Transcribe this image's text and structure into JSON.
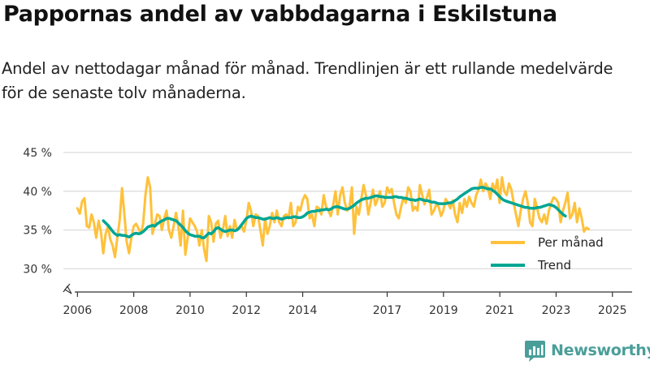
{
  "title": "Pappornas andel av vabbdagarna i Eskilstuna",
  "subtitle": "Andel av nettodagar månad för månad. Trendlinjen är ett rullande medelvärde för de senaste tolv månaderna.",
  "brand": "Newsworthy",
  "colors": {
    "monthly": "#ffc13b",
    "trend": "#00a693",
    "grid": "#d9d9d9",
    "axis": "#333333",
    "brand": "#4a9e9a"
  },
  "chart_data": {
    "type": "line",
    "title": "Pappornas andel av vabbdagarna i Eskilstuna",
    "xlabel": "",
    "ylabel": "",
    "y_range": [
      27,
      45
    ],
    "x_range": [
      2005.5,
      2025.7
    ],
    "y_ticks": [
      30,
      35,
      40,
      45
    ],
    "y_tick_labels": [
      "30 %",
      "35 %",
      "40 %",
      "45 %"
    ],
    "axis_break": true,
    "x_ticks": [
      2006,
      2008,
      2010,
      2012,
      2014,
      2017,
      2019,
      2021,
      2023,
      2025
    ],
    "x_tick_labels": [
      "2006",
      "2008",
      "2010",
      "2012",
      "2014",
      "2017",
      "2019",
      "2021",
      "2023",
      "2025"
    ],
    "legend": {
      "position": "bottom-right",
      "entries": [
        "Per månad",
        "Trend"
      ]
    },
    "series": [
      {
        "name": "Per månad",
        "x_start": 2006.0,
        "x_step": 0.0833,
        "values": [
          37.8,
          37.1,
          38.7,
          39.1,
          35.5,
          35.3,
          37.0,
          36.0,
          34.0,
          36.2,
          34.8,
          32.0,
          34.5,
          35.5,
          33.8,
          33.0,
          31.5,
          34.0,
          36.3,
          40.4,
          37.0,
          33.5,
          32.0,
          34.0,
          35.5,
          35.8,
          35.2,
          34.5,
          35.8,
          39.5,
          41.8,
          40.5,
          34.5,
          35.8,
          37.0,
          36.8,
          35.0,
          36.5,
          37.5,
          35.0,
          34.0,
          35.5,
          37.2,
          35.5,
          33.0,
          37.5,
          31.8,
          34.0,
          36.5,
          36.0,
          35.5,
          34.8,
          33.0,
          35.0,
          32.5,
          31.0,
          36.8,
          36.0,
          33.5,
          35.8,
          36.2,
          34.0,
          35.0,
          36.8,
          34.2,
          35.5,
          34.0,
          36.3,
          35.0,
          35.2,
          35.5,
          34.8,
          36.2,
          38.5,
          37.5,
          35.5,
          37.0,
          36.8,
          35.0,
          33.0,
          36.5,
          34.5,
          35.5,
          37.2,
          36.0,
          37.5,
          36.0,
          35.5,
          36.8,
          37.0,
          36.5,
          38.5,
          35.5,
          36.0,
          38.0,
          37.5,
          38.8,
          39.5,
          39.0,
          36.5,
          37.0,
          35.5,
          38.0,
          37.8,
          37.0,
          39.5,
          38.0,
          37.5,
          36.8,
          38.2,
          40.0,
          37.0,
          39.5,
          40.5,
          38.5,
          37.5,
          38.0,
          40.5,
          34.5,
          38.0,
          37.0,
          39.0,
          40.8,
          39.5,
          37.0,
          38.5,
          40.2,
          38.2,
          39.0,
          40.0,
          38.0,
          38.5,
          40.5,
          39.8,
          40.3,
          38.5,
          37.0,
          36.5,
          38.0,
          39.2,
          38.5,
          40.5,
          40.0,
          37.5,
          38.0,
          37.5,
          40.8,
          39.5,
          38.3,
          39.2,
          40.2,
          37.0,
          37.5,
          38.3,
          38.0,
          36.8,
          37.5,
          39.0,
          38.5,
          37.8,
          38.8,
          37.0,
          36.0,
          38.5,
          37.2,
          39.0,
          38.0,
          39.3,
          38.5,
          38.0,
          39.5,
          40.2,
          41.5,
          40.0,
          41.0,
          40.5,
          39.0,
          41.0,
          40.0,
          41.5,
          38.5,
          41.8,
          40.0,
          39.5,
          41.0,
          40.2,
          38.5,
          37.0,
          35.5,
          37.5,
          39.0,
          40.0,
          38.5,
          36.0,
          35.5,
          39.0,
          37.8,
          36.5,
          36.0,
          37.0,
          35.8,
          37.5,
          38.5,
          39.2,
          39.0,
          38.5,
          36.0,
          37.5,
          38.5,
          39.8,
          36.5,
          37.0,
          38.5,
          36.0,
          37.8,
          36.5,
          34.8,
          35.3,
          35.1
        ]
      },
      {
        "name": "Trend",
        "x_start": 2006.92,
        "x_step": 0.0833,
        "values": [
          36.2,
          35.9,
          35.6,
          35.2,
          34.8,
          34.5,
          34.3,
          34.4,
          34.3,
          34.3,
          34.2,
          34.1,
          34.3,
          34.5,
          34.6,
          34.5,
          34.6,
          34.8,
          35.1,
          35.4,
          35.5,
          35.6,
          35.5,
          35.8,
          36.0,
          36.2,
          36.3,
          36.5,
          36.5,
          36.4,
          36.3,
          36.2,
          35.9,
          35.6,
          35.3,
          34.9,
          34.6,
          34.4,
          34.3,
          34.2,
          34.2,
          34.2,
          34.0,
          34.0,
          34.3,
          34.6,
          34.5,
          34.8,
          35.2,
          35.3,
          35.1,
          34.9,
          34.8,
          34.9,
          35.0,
          35.0,
          34.9,
          35.0,
          35.3,
          35.7,
          36.1,
          36.5,
          36.7,
          36.8,
          36.7,
          36.6,
          36.6,
          36.5,
          36.4,
          36.4,
          36.5,
          36.6,
          36.5,
          36.5,
          36.6,
          36.5,
          36.4,
          36.5,
          36.6,
          36.6,
          36.6,
          36.7,
          36.7,
          36.6,
          36.6,
          36.7,
          36.9,
          37.2,
          37.3,
          37.4,
          37.4,
          37.5,
          37.5,
          37.6,
          37.6,
          37.7,
          37.6,
          37.7,
          37.9,
          38.0,
          38.0,
          37.9,
          37.8,
          37.7,
          37.7,
          37.8,
          38.0,
          38.2,
          38.5,
          38.7,
          38.9,
          39.0,
          39.1,
          39.1,
          39.2,
          39.3,
          39.4,
          39.4,
          39.3,
          39.3,
          39.2,
          39.2,
          39.2,
          39.2,
          39.3,
          39.3,
          39.2,
          39.2,
          39.1,
          39.1,
          39.0,
          38.9,
          38.9,
          38.8,
          38.9,
          39.0,
          38.9,
          38.8,
          38.8,
          38.7,
          38.6,
          38.6,
          38.5,
          38.4,
          38.4,
          38.4,
          38.4,
          38.5,
          38.5,
          38.6,
          38.8,
          39.0,
          39.3,
          39.5,
          39.7,
          39.9,
          40.1,
          40.3,
          40.4,
          40.4,
          40.4,
          40.5,
          40.5,
          40.4,
          40.3,
          40.3,
          40.1,
          39.9,
          39.6,
          39.3,
          39.0,
          38.8,
          38.7,
          38.6,
          38.5,
          38.4,
          38.3,
          38.2,
          38.1,
          38.0,
          37.9,
          37.9,
          37.8,
          37.8,
          37.8,
          37.9,
          37.9,
          38.0,
          38.1,
          38.2,
          38.3,
          38.2,
          38.1,
          37.9,
          37.6,
          37.3,
          37.0,
          36.8
        ]
      }
    ]
  }
}
